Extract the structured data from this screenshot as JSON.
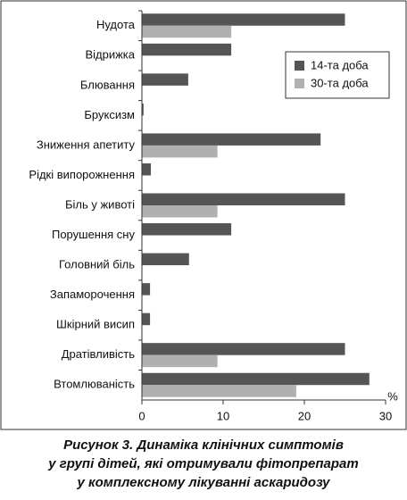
{
  "chart_data": {
    "type": "hbar",
    "categories": [
      "Нудота",
      "Відрижка",
      "Блювання",
      "Бруксизм",
      "Зниження апетиту",
      "Рідкі випорожнення",
      "Біль у животі",
      "Порушення сну",
      "Головний біль",
      "Запаморочення",
      "Шкірний висип",
      "Дратівливість",
      "Втомлюваність"
    ],
    "series": [
      {
        "name": "14-та доба",
        "color": "#555555",
        "values": [
          25,
          11,
          5.7,
          0.2,
          22,
          1.1,
          25,
          11,
          5.8,
          1,
          1,
          25,
          28
        ]
      },
      {
        "name": "30-та доба",
        "color": "#b0b0b0",
        "values": [
          11,
          null,
          null,
          null,
          9.3,
          null,
          9.3,
          null,
          null,
          null,
          null,
          9.3,
          19
        ]
      }
    ],
    "xlim": [
      0,
      30
    ],
    "xticks": [
      0,
      10,
      20,
      30
    ],
    "xlabel": "%",
    "legend": "upper right"
  },
  "caption": [
    "Рисунок 3. Динаміка клінічних симптомів",
    "у групі дітей, які отримували фітопрепарат",
    "у комплексному лікуванні аскаридозу"
  ]
}
